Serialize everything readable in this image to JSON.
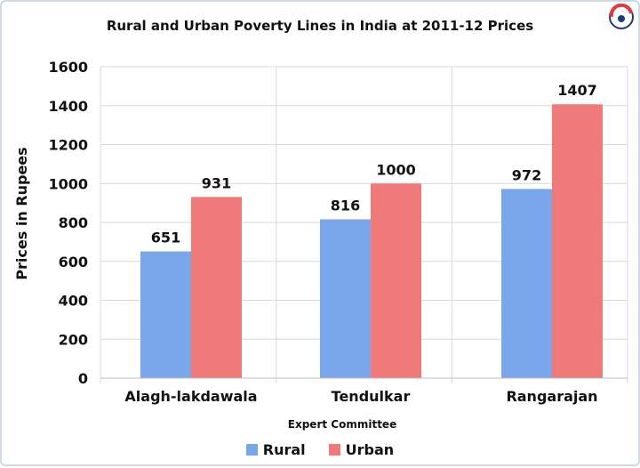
{
  "chart_data": {
    "type": "bar",
    "title": "Rural and Urban Poverty Lines in India at 2011-12 Prices",
    "xlabel": "Expert Committee",
    "ylabel": "Prices in Rupees",
    "categories": [
      "Alagh-lakdawala",
      "Tendulkar",
      "Rangarajan"
    ],
    "series": [
      {
        "name": "Rural",
        "values": [
          651,
          816,
          972
        ],
        "color": "#7aa7ec"
      },
      {
        "name": "Urban",
        "values": [
          931,
          1000,
          1407
        ],
        "color": "#f07a7a"
      }
    ],
    "ylim": [
      0,
      1600
    ],
    "yticks": [
      0,
      200,
      400,
      600,
      800,
      1000,
      1200,
      1400,
      1600
    ],
    "grid": true,
    "legend_position": "bottom"
  },
  "logo": {
    "icon": "brand-logo-icon"
  }
}
